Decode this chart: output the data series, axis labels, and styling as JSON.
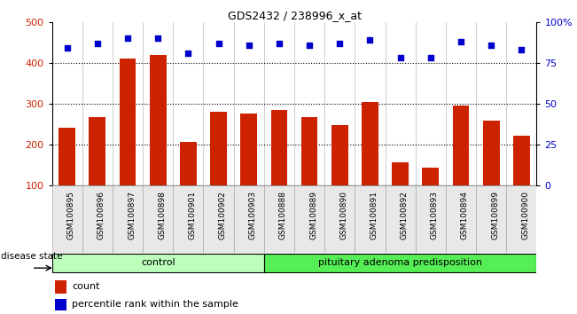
{
  "title": "GDS2432 / 238996_x_at",
  "samples": [
    "GSM100895",
    "GSM100896",
    "GSM100897",
    "GSM100898",
    "GSM100901",
    "GSM100902",
    "GSM100903",
    "GSM100888",
    "GSM100889",
    "GSM100890",
    "GSM100891",
    "GSM100892",
    "GSM100893",
    "GSM100894",
    "GSM100899",
    "GSM100900"
  ],
  "bar_values": [
    242,
    268,
    410,
    420,
    207,
    280,
    275,
    285,
    267,
    247,
    305,
    157,
    143,
    295,
    258,
    222
  ],
  "percentile_values": [
    84,
    87,
    90,
    90,
    81,
    87,
    86,
    87,
    86,
    87,
    89,
    78,
    78,
    88,
    86,
    83
  ],
  "bar_color": "#cc2200",
  "dot_color": "#0000cc",
  "ylim_left": [
    100,
    500
  ],
  "ylim_right": [
    0,
    100
  ],
  "yticks_left": [
    100,
    200,
    300,
    400,
    500
  ],
  "yticks_right": [
    0,
    25,
    50,
    75,
    100
  ],
  "ytick_labels_right": [
    "0",
    "25",
    "50",
    "75",
    "100%"
  ],
  "grid_values": [
    200,
    300,
    400
  ],
  "control_samples": 7,
  "control_label": "control",
  "disease_label": "pituitary adenoma predisposition",
  "disease_state_label": "disease state",
  "legend_bar_label": "count",
  "legend_dot_label": "percentile rank within the sample",
  "control_color": "#bbffbb",
  "disease_color": "#55ee55",
  "bar_width": 0.55,
  "background_color": "#ffffff"
}
